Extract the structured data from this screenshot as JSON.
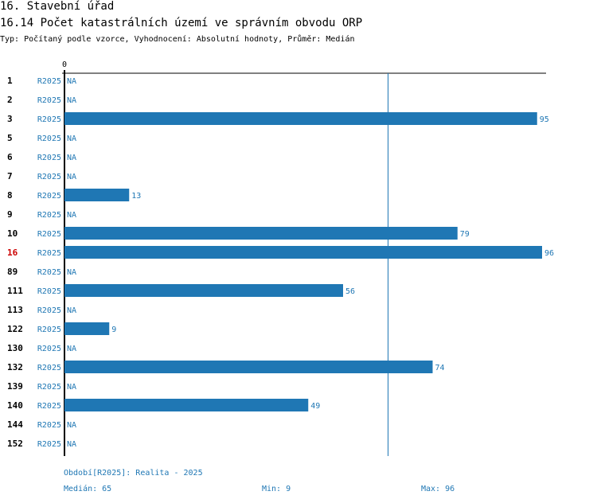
{
  "header": {
    "section": "16. Stavební úřad",
    "title": "16.14 Počet katastrálních území ve správním obvodu ORP",
    "subtitle": "Typ: Počítaný podle vzorce, Vyhodnocení: Absolutní hodnoty, Průměr: Medián"
  },
  "colors": {
    "bar": "#1f77b4",
    "highlight": "#cc0000",
    "axis": "#000000"
  },
  "chart_data": {
    "type": "bar",
    "orientation": "horizontal",
    "title": "16.14 Počet katastrálních území ve správním obvodu ORP",
    "xlim": [
      0,
      96
    ],
    "x_tick_labels": [
      "0"
    ],
    "reference_line": {
      "label": "Medián",
      "value": 65
    },
    "highlight_category": "16",
    "categories": [
      "1",
      "2",
      "3",
      "5",
      "6",
      "7",
      "8",
      "9",
      "10",
      "16",
      "89",
      "111",
      "113",
      "122",
      "130",
      "132",
      "139",
      "140",
      "144",
      "152"
    ],
    "periods": [
      "R2025",
      "R2025",
      "R2025",
      "R2025",
      "R2025",
      "R2025",
      "R2025",
      "R2025",
      "R2025",
      "R2025",
      "R2025",
      "R2025",
      "R2025",
      "R2025",
      "R2025",
      "R2025",
      "R2025",
      "R2025",
      "R2025",
      "R2025"
    ],
    "values": [
      null,
      null,
      95,
      null,
      null,
      null,
      13,
      null,
      79,
      96,
      null,
      56,
      null,
      9,
      null,
      74,
      null,
      49,
      null,
      null
    ],
    "value_labels": [
      "NA",
      "NA",
      "95",
      "NA",
      "NA",
      "NA",
      "13",
      "NA",
      "79",
      "96",
      "NA",
      "56",
      "NA",
      "9",
      "NA",
      "74",
      "NA",
      "49",
      "NA",
      "NA"
    ]
  },
  "footer": {
    "period": "Období[R2025]: Realita - 2025",
    "median": "Medián: 65",
    "min": "Min: 9",
    "max": "Max: 96"
  }
}
